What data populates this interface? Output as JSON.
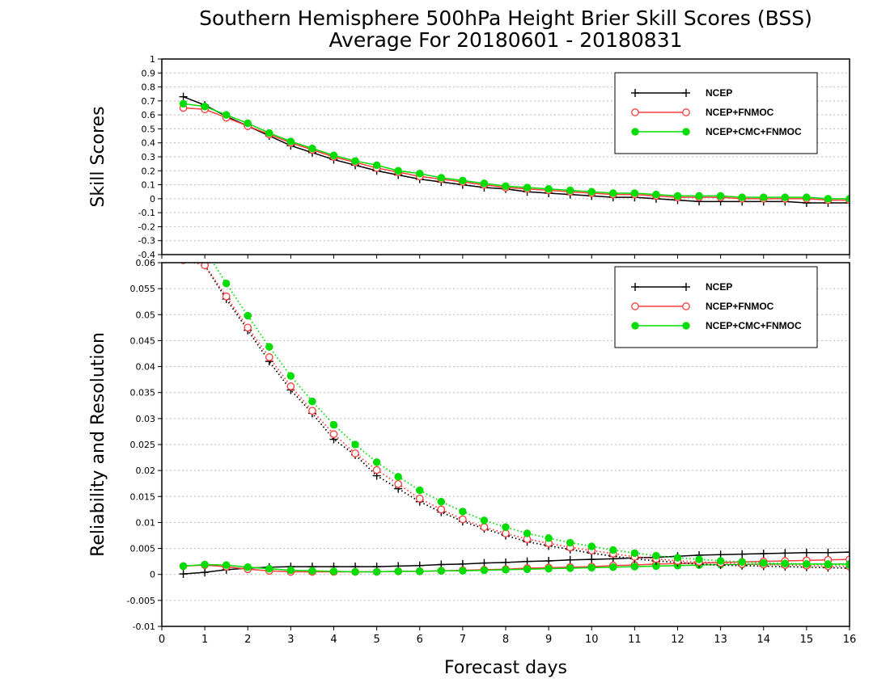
{
  "title": {
    "line1": "Southern Hemisphere 500hPa Height Brier Skill Scores (BSS)",
    "line2": "Average For 20180601 - 20180831"
  },
  "xlabel": "Forecast days",
  "colors": {
    "ncep": "#000000",
    "fnmoc": "#ff3b3b",
    "cmc": "#00dd00"
  },
  "chart_data": [
    {
      "type": "line",
      "ylabel": "Skill Scores",
      "ylim": [
        -0.4,
        1
      ],
      "xlim": [
        0,
        16
      ],
      "yticks": [
        "1",
        "0.9",
        "0.8",
        "0.7",
        "0.6",
        "0.5",
        "0.4",
        "0.3",
        "0.2",
        "0.1",
        "0",
        "-0.1",
        "-0.2",
        "-0.3",
        "-0.4"
      ],
      "xticks": [
        "0",
        "1",
        "2",
        "3",
        "4",
        "5",
        "6",
        "7",
        "8",
        "9",
        "10",
        "11",
        "12",
        "13",
        "14",
        "15",
        "16"
      ],
      "grid": true,
      "legend_position": "top-right",
      "x": [
        0.5,
        1,
        1.5,
        2,
        2.5,
        3,
        3.5,
        4,
        4.5,
        5,
        5.5,
        6,
        6.5,
        7,
        7.5,
        8,
        8.5,
        9,
        9.5,
        10,
        10.5,
        11,
        11.5,
        12,
        12.5,
        13,
        13.5,
        14,
        14.5,
        15,
        15.5,
        16
      ],
      "series": [
        {
          "name": "NCEP",
          "key": "ncep",
          "values": [
            0.73,
            0.67,
            0.59,
            0.52,
            0.45,
            0.38,
            0.33,
            0.28,
            0.24,
            0.2,
            0.17,
            0.14,
            0.12,
            0.1,
            0.08,
            0.07,
            0.05,
            0.04,
            0.03,
            0.02,
            0.01,
            0.01,
            0.0,
            -0.01,
            -0.02,
            -0.02,
            -0.02,
            -0.02,
            -0.02,
            -0.03,
            -0.03,
            -0.03
          ]
        },
        {
          "name": "NCEP+FNMOC",
          "key": "fnmoc",
          "values": [
            0.65,
            0.64,
            0.58,
            0.52,
            0.46,
            0.4,
            0.35,
            0.3,
            0.26,
            0.22,
            0.19,
            0.16,
            0.14,
            0.12,
            0.1,
            0.08,
            0.07,
            0.06,
            0.05,
            0.04,
            0.03,
            0.03,
            0.02,
            0.01,
            0.01,
            0.01,
            0.0,
            0.0,
            0.0,
            0.0,
            -0.01,
            -0.01
          ]
        },
        {
          "name": "NCEP+CMC+FNMOC",
          "key": "cmc",
          "values": [
            0.68,
            0.66,
            0.6,
            0.54,
            0.47,
            0.41,
            0.36,
            0.31,
            0.27,
            0.24,
            0.2,
            0.18,
            0.15,
            0.13,
            0.11,
            0.09,
            0.08,
            0.07,
            0.06,
            0.05,
            0.04,
            0.04,
            0.03,
            0.02,
            0.02,
            0.02,
            0.01,
            0.01,
            0.01,
            0.01,
            0.0,
            0.0
          ]
        }
      ]
    },
    {
      "type": "line",
      "ylabel": "Reliability and Resolution",
      "ylim": [
        -0.01,
        0.06
      ],
      "xlim": [
        0,
        16
      ],
      "yticks": [
        "0.06",
        "0.055",
        "0.05",
        "0.045",
        "0.04",
        "0.035",
        "0.03",
        "0.025",
        "0.02",
        "0.015",
        "0.01",
        "0.005",
        "0",
        "-0.005",
        "-0.01"
      ],
      "xticks": [
        "0",
        "1",
        "2",
        "3",
        "4",
        "5",
        "6",
        "7",
        "8",
        "9",
        "10",
        "11",
        "12",
        "13",
        "14",
        "15",
        "16"
      ],
      "grid": true,
      "legend_position": "top-right",
      "x": [
        0.5,
        1,
        1.5,
        2,
        2.5,
        3,
        3.5,
        4,
        4.5,
        5,
        5.5,
        6,
        6.5,
        7,
        7.5,
        8,
        8.5,
        9,
        9.5,
        10,
        10.5,
        11,
        11.5,
        12,
        12.5,
        13,
        13.5,
        14,
        14.5,
        15,
        15.5,
        16
      ],
      "series": [
        {
          "name": "NCEP",
          "key": "ncep",
          "style": "solid",
          "values": [
            0.0001,
            0.0004,
            0.0009,
            0.0012,
            0.0014,
            0.0015,
            0.0015,
            0.0015,
            0.0015,
            0.0015,
            0.0016,
            0.0017,
            0.0019,
            0.002,
            0.0022,
            0.0023,
            0.0025,
            0.0026,
            0.0028,
            0.0029,
            0.003,
            0.0032,
            0.0033,
            0.0035,
            0.0037,
            0.0038,
            0.0039,
            0.004,
            0.0041,
            0.0042,
            0.0042,
            0.0043
          ]
        },
        {
          "name": "NCEP+FNMOC",
          "key": "fnmoc",
          "style": "solid",
          "values": [
            0.0016,
            0.0018,
            0.0015,
            0.001,
            0.0007,
            0.0005,
            0.0005,
            0.0005,
            0.0005,
            0.0005,
            0.0006,
            0.0006,
            0.0007,
            0.0008,
            0.0009,
            0.001,
            0.0012,
            0.0013,
            0.0014,
            0.0015,
            0.0017,
            0.0018,
            0.002,
            0.0021,
            0.0022,
            0.0023,
            0.0024,
            0.0025,
            0.0026,
            0.0027,
            0.0028,
            0.0029
          ]
        },
        {
          "name": "NCEP+CMC+FNMOC",
          "key": "cmc",
          "style": "solid",
          "values": [
            0.0016,
            0.0019,
            0.0018,
            0.0014,
            0.0011,
            0.0008,
            0.0007,
            0.0006,
            0.0005,
            0.0005,
            0.0006,
            0.0006,
            0.0007,
            0.0007,
            0.0008,
            0.0009,
            0.001,
            0.0011,
            0.0012,
            0.0013,
            0.0014,
            0.0015,
            0.0016,
            0.0017,
            0.0018,
            0.0019,
            0.0019,
            0.002,
            0.002,
            0.002,
            0.002,
            0.002
          ]
        },
        {
          "name": "NCEP",
          "key": "ncep",
          "style": "dotted",
          "values": [
            0.062,
            0.0595,
            0.053,
            0.047,
            0.041,
            0.0355,
            0.031,
            0.026,
            0.023,
            0.019,
            0.0165,
            0.014,
            0.012,
            0.0102,
            0.0088,
            0.0075,
            0.0063,
            0.0055,
            0.0048,
            0.0041,
            0.0035,
            0.003,
            0.0026,
            0.0023,
            0.002,
            0.0018,
            0.0017,
            0.0016,
            0.0015,
            0.0014,
            0.0013,
            0.0012
          ]
        },
        {
          "name": "NCEP+FNMOC",
          "key": "fnmoc",
          "style": "dotted",
          "values": [
            0.0605,
            0.0595,
            0.0535,
            0.0475,
            0.0418,
            0.0362,
            0.0315,
            0.027,
            0.0233,
            0.0201,
            0.0174,
            0.0146,
            0.0125,
            0.0106,
            0.0091,
            0.0079,
            0.0068,
            0.006,
            0.0052,
            0.0046,
            0.004,
            0.0034,
            0.003,
            0.0026,
            0.0024,
            0.0022,
            0.002,
            0.0019,
            0.0018,
            0.0017,
            0.0016,
            0.0015
          ]
        },
        {
          "name": "NCEP+CMC+FNMOC",
          "key": "cmc",
          "style": "dotted",
          "values": [
            0.064,
            0.0625,
            0.056,
            0.0498,
            0.0438,
            0.0382,
            0.0333,
            0.0288,
            0.025,
            0.0216,
            0.0188,
            0.0162,
            0.014,
            0.0121,
            0.0104,
            0.0091,
            0.0079,
            0.007,
            0.0061,
            0.0054,
            0.0047,
            0.0041,
            0.0036,
            0.0032,
            0.0029,
            0.0026,
            0.0024,
            0.0022,
            0.0021,
            0.002,
            0.0019,
            0.0018
          ]
        }
      ]
    }
  ]
}
